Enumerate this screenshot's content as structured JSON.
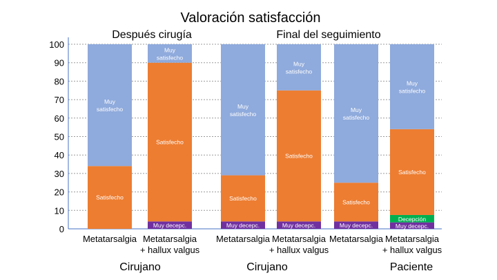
{
  "chart_data": {
    "type": "bar",
    "stacked": true,
    "title": "Valoración satisfacción",
    "subtitles": [
      "Después cirugía",
      "Final del seguimiento"
    ],
    "categories": [
      "Metatarsalgia",
      "Metatarsalgia\n+ hallux valgus",
      "Metatarsalgia",
      "Metatarsalgia\n+ hallux valgus",
      "Metatarsalgia",
      "Metatarsalgia\n+ hallux valgus"
    ],
    "groups": [
      "Cirujano",
      "Cirujano",
      "Paciente"
    ],
    "ylim": [
      0,
      100
    ],
    "yticks": [
      0,
      10,
      20,
      30,
      40,
      50,
      60,
      70,
      80,
      90,
      100
    ],
    "grid": true,
    "series": [
      {
        "name": "Muy decepc.",
        "color": "#7030A0",
        "values": [
          0,
          4,
          4,
          4,
          4,
          3.5
        ]
      },
      {
        "name": "Decepción",
        "color": "#00B050",
        "values": [
          0,
          0,
          0,
          0,
          0,
          4
        ]
      },
      {
        "name": "Satisfecho",
        "color": "#ED7D31",
        "values": [
          34,
          86,
          25,
          71,
          21,
          46.5
        ]
      },
      {
        "name": "Muy satisfecho",
        "color": "#8FAADC",
        "values": [
          66,
          10,
          71,
          25,
          75,
          46
        ]
      }
    ]
  }
}
